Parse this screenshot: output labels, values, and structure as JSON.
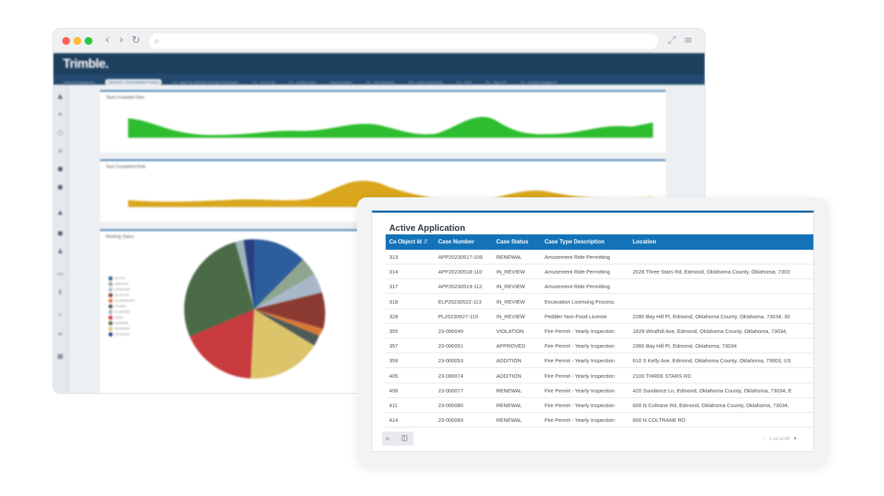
{
  "browser": {
    "back_icon": "chevron-left-icon",
    "forward_icon": "chevron-right-icon",
    "reload_icon": "reload-icon",
    "search_icon": "search-icon",
    "expand_icon": "expand-icon",
    "menu_icon": "hamburger-menu-icon"
  },
  "app": {
    "logo": "Trimble.",
    "tabs": [
      {
        "label": "Dashboard Management",
        "active": false
      },
      {
        "label": "Dashboard - Permit Application Tracking",
        "active": true
      },
      {
        "label": "PLL - Major Plan Application and Major Plan Revision",
        "active": false
      },
      {
        "label": "PLL - Fire Permits",
        "active": false
      },
      {
        "label": "PLL - Activities Focus",
        "active": false
      },
      {
        "label": "Citywork Analytics",
        "active": false
      },
      {
        "label": "PLL - Main Dashboard",
        "active": false
      },
      {
        "label": "Fleet - Vehicle Departments",
        "active": false
      },
      {
        "label": "PLL - HOST",
        "active": false
      },
      {
        "label": "PLL - Major LDP",
        "active": false
      },
      {
        "label": "PLL - Cemetery Management",
        "active": false
      }
    ],
    "panels": {
      "tasks_available": "Tasks Available Rate",
      "tasks_completed": "Task Completed Rate",
      "working_status": "Working Status"
    },
    "legend": [
      "ACTIVE",
      "ADDITION",
      "APPROVED",
      "IN_ACTIVE",
      "IN_APPROVED",
      "CLOSED",
      "IN_REVIEW",
      "OPEN",
      "RENEWAL",
      "RESERVED",
      "VIOLATION"
    ],
    "colors": {
      "green_area": "#2ebd2e",
      "gold_area": "#d9a61c",
      "topbar": "#1f3f5e",
      "table_header": "#1473b8"
    }
  },
  "table": {
    "title": "Active Application",
    "columns": [
      "Ca Object Id",
      "Case Number",
      "Case Status",
      "Case Type Description",
      "Location"
    ],
    "sort_icon": "sort-icon",
    "rows": [
      {
        "id": "313",
        "case_number": "APP20230517-109",
        "status": "RENEWAL",
        "type": "Amusement Ride Permitting",
        "location": ""
      },
      {
        "id": "314",
        "case_number": "APP20230518-110",
        "status": "IN_REVIEW",
        "type": "Amusement Ride Permitting",
        "location": "2028 Three Stars Rd, Edmond, Oklahoma County, Oklahoma, 7303"
      },
      {
        "id": "317",
        "case_number": "APP20230519-112",
        "status": "IN_REVIEW",
        "type": "Amusement Ride Permitting",
        "location": ""
      },
      {
        "id": "318",
        "case_number": "ELP20230522-113",
        "status": "IN_REVIEW",
        "type": "Excavation Licensing Process",
        "location": ""
      },
      {
        "id": "328",
        "case_number": "PL20230927-115",
        "status": "IN_REVIEW",
        "type": "Peddler Non-Food License",
        "location": "2280 Bay Hill Pl, Edmond, Oklahoma County, Oklahoma, 73034, 30"
      },
      {
        "id": "355",
        "case_number": "23-000049",
        "status": "VIOLATION",
        "type": "Fire Permit - Yearly Inspection",
        "location": "1829 Windhill Ave, Edmond, Oklahoma County, Oklahoma, 73034,"
      },
      {
        "id": "357",
        "case_number": "23-000051",
        "status": "APPROVED",
        "type": "Fire Permit - Yearly Inspection",
        "location": "2360 Bay Hill Pl, Edmond, Oklahoma, 73034"
      },
      {
        "id": "359",
        "case_number": "23-000053",
        "status": "ADDITION",
        "type": "Fire Permit - Yearly Inspection",
        "location": "610 S Kelly Ave, Edmond, Oklahoma County, Oklahoma, 73003, US"
      },
      {
        "id": "405",
        "case_number": "23-000074",
        "status": "ADDITION",
        "type": "Fire Permit - Yearly Inspection",
        "location": "2100 THREE STARS RD"
      },
      {
        "id": "408",
        "case_number": "23-000077",
        "status": "RENEWAL",
        "type": "Fire Permit - Yearly Inspection",
        "location": "420 Sundance Ln, Edmond, Oklahoma County, Oklahoma, 73034, E"
      },
      {
        "id": "411",
        "case_number": "23-000080",
        "status": "RENEWAL",
        "type": "Fire Permit - Yearly Inspection",
        "location": "600 N Coltrane Rd, Edmond, Oklahoma County, Oklahoma, 73034,"
      },
      {
        "id": "414",
        "case_number": "23-000083",
        "status": "RENEWAL",
        "type": "Fire Permit - Yearly Inspection",
        "location": "600 N COLTRANE RD"
      }
    ],
    "search_icon": "search-icon",
    "columns_icon": "columns-icon",
    "pager": "1-12 of 40",
    "prev_icon": "chevron-left-icon",
    "next_icon": "chevron-right-icon"
  }
}
